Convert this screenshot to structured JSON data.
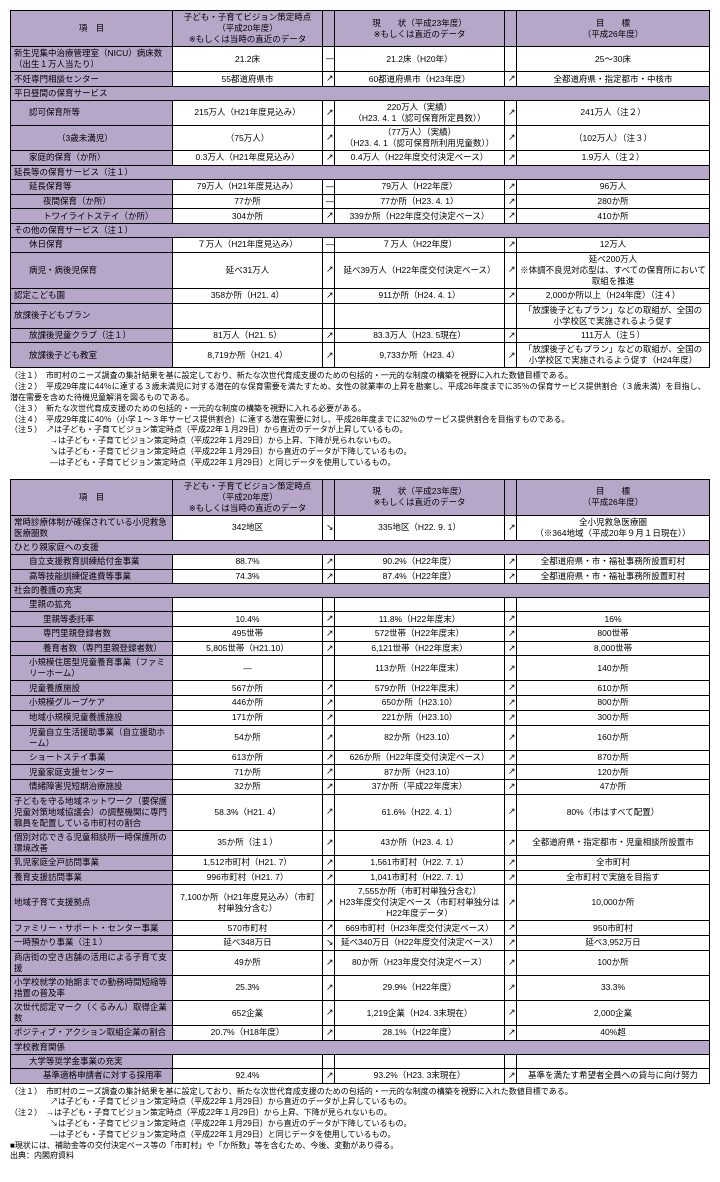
{
  "t1": {
    "header": {
      "item": "項　目",
      "vision": "子ども・子育てビジョン策定時点\n（平成20年度）\n※もしくは当時の直近のデータ",
      "current": "現　　状（平成23年度）\n※もしくは直近のデータ",
      "target": "目　　標\n（平成26年度）"
    },
    "rows": [
      {
        "label": "新生児集中治療管理室（NICU）病床数（出生１万人当たり）",
        "vision": "21.2床",
        "a1": "—",
        "current": "21.2床（H20年）",
        "a2": "",
        "target": "25〜30床"
      },
      {
        "label": "不妊専門相談センター",
        "vision": "55都道府県市",
        "a1": "↗",
        "current": "60都道府県市（H23年度）",
        "a2": "↗",
        "target": "全都道府県・指定都市・中核市"
      }
    ],
    "sec1": {
      "h": "平日昼間の保育サービス",
      "rows": [
        {
          "label": "認可保育所等",
          "ind": 1,
          "vision": "215万人（H21年度見込み）",
          "a1": "↗",
          "current": "220万人（実績）\n（H23. 4. 1（認可保育所定員数））",
          "a2": "↗",
          "target": "241万人（注２）"
        },
        {
          "label": "（3歳未満児）",
          "ind": 3,
          "vision": "（75万人）",
          "a1": "↗",
          "current": "（77万人）（実績）\n（H23. 4. 1（認可保育所利用児童数））",
          "a2": "↗",
          "target": "（102万人）（注３）"
        },
        {
          "label": "家庭的保育（か所）",
          "ind": 1,
          "vision": "0.3万人（H21年度見込み）",
          "a1": "↗",
          "current": "0.4万人（H22年度交付決定ベース）",
          "a2": "↗",
          "target": "1.9万人（注２）"
        }
      ]
    },
    "sec2": {
      "h": "延長等の保育サービス（注１）",
      "rows": [
        {
          "label": "延長保育等",
          "ind": 1,
          "vision": "79万人（H21年度見込み）",
          "a1": "—",
          "current": "79万人（H22年度）",
          "a2": "↗",
          "target": "96万人"
        },
        {
          "label": "夜間保育（か所）",
          "ind": 2,
          "vision": "77か所",
          "a1": "—",
          "current": "77か所（H23. 4. 1）",
          "a2": "↗",
          "target": "280か所"
        },
        {
          "label": "トワイライトステイ（か所）",
          "ind": 2,
          "vision": "304か所",
          "a1": "↗",
          "current": "339か所（H22年度交付決定ベース）",
          "a2": "↗",
          "target": "410か所"
        }
      ]
    },
    "sec3": {
      "h": "その他の保育サービス（注１）",
      "rows": [
        {
          "label": "休日保育",
          "ind": 1,
          "vision": "７万人（H21年度見込み）",
          "a1": "—",
          "current": "７万人（H22年度）",
          "a2": "↗",
          "target": "12万人"
        },
        {
          "label": "病児・病後児保育",
          "ind": 1,
          "vision": "延べ31万人",
          "a1": "↗",
          "current": "延べ39万人（H22年度交付決定ベース）",
          "a2": "↗",
          "target": "延べ200万人\n※体調不良児対応型は、すべての保育所において取組を推進"
        }
      ],
      "nintei": {
        "label": "認定こども園",
        "vision": "358か所（H21. 4）",
        "a1": "↗",
        "current": "911か所（H24. 4. 1）",
        "a2": "↗",
        "target": "2,000か所以上（H24年度）（注４）"
      }
    },
    "sec4": {
      "h": "放課後子どもプラン",
      "htarget": "「放課後子どもプラン」などの取組が、全国の小学校区で実施されるよう促す",
      "rows": [
        {
          "label": "放課後児童クラブ（注１）",
          "ind": 1,
          "vision": "81万人（H21. 5）",
          "a1": "↗",
          "current": "83.3万人（H23. 5現在）",
          "a2": "↗",
          "target": "111万人（注５）"
        },
        {
          "label": "放課後子ども教室",
          "ind": 1,
          "vision": "8,719か所（H21. 4）",
          "a1": "↗",
          "current": "9,733か所（H23. 4）",
          "a2": "↗",
          "target": "「放課後子どもプラン」などの取組が、全国の小学校区で実施されるよう促す（H24年度）"
        }
      ]
    }
  },
  "notes1": [
    "（注１）　市町村のニーズ調査の集計結果を基に設定しており、新たな次世代育成支援のための包括的・一元的な制度の構築を視野に入れた数値目標である。",
    "（注２）　平成29年度に44％に達する３歳未満児に対する潜在的な保育需要を満たすため、女性の就業率の上昇を勘案し、平成26年度までに35％の保育サービス提供割合（３歳未満）を目指し、潜在需要を含めた待機児童解消を図るものである。",
    "（注３）　新たな次世代育成支援のための包括的・一元的な制度の構築を視野に入れる必要がある。",
    "（注４）　平成29年度に40％（小学１〜３年サービス提供割合）に達する潜在需要に対し、平成26年度までに32％のサービス提供割合を目指すものである。",
    "（注５）　↗は子ども・子育てビジョン策定時点（平成22年１月29日）から直近のデータが上昇しているもの。",
    "　　　　　→は子ども・子育てビジョン策定時点（平成22年１月29日）から上昇、下降が見られないもの。",
    "　　　　　↘は子ども・子育てビジョン策定時点（平成22年１月29日）から直近のデータが下降しているもの。",
    "　　　　　—は子ども・子育てビジョン策定時点（平成22年１月29日）と同じデータを使用しているもの。"
  ],
  "t2": {
    "header": {
      "item": "項　目",
      "vision": "子ども・子育てビジョン策定時点\n（平成20年度）\n※もしくは当時の直近のデータ",
      "current": "現　　状（平成23年度）\n※もしくは直近のデータ",
      "target": "目　　標\n（平成26年度）"
    },
    "r1": {
      "label": "常時診療体制が確保されている小児救急医療圏数",
      "vision": "342地区",
      "a1": "↘",
      "current": "335地区（H22. 9. 1）",
      "a2": "↗",
      "target": "全小児救急医療圏\n（※364地域（平成20年９月１日現在））"
    },
    "sec1": {
      "h": "ひとり親家庭への支援",
      "rows": [
        {
          "label": "自立支援教育訓練給付金事業",
          "ind": 1,
          "vision": "88.7%",
          "a1": "↗",
          "current": "90.2%（H22年度）",
          "a2": "↗",
          "target": "全都道府県・市・福祉事務所設置町村"
        },
        {
          "label": "高等技能訓練促進費等事業",
          "ind": 1,
          "vision": "74.3%",
          "a1": "↗",
          "current": "87.4%（H22年度）",
          "a2": "↗",
          "target": "全都道府県・市・福祉事務所設置町村"
        }
      ]
    },
    "sec2": {
      "h": "社会的養護の充実",
      "rows": [
        {
          "label": "里親の拡充",
          "ind": 1,
          "head": true
        },
        {
          "label": "里親等委託率",
          "ind": 2,
          "vision": "10.4%",
          "a1": "↗",
          "current": "11.8%（H22年度末）",
          "a2": "↗",
          "target": "16%"
        },
        {
          "label": "専門里親登録者数",
          "ind": 2,
          "vision": "495世帯",
          "a1": "↗",
          "current": "572世帯（H22年度末）",
          "a2": "↗",
          "target": "800世帯"
        },
        {
          "label": "養育者数（専門里親登録者数）",
          "ind": 2,
          "vision": "5,805世帯（H21.10）",
          "a1": "↗",
          "current": "6,121世帯（H22年度末）",
          "a2": "↗",
          "target": "8,000世帯"
        },
        {
          "label": "小規模住居型児童養育事業（ファミリーホーム）",
          "ind": 1,
          "vision": "—",
          "a1": "",
          "current": "113か所（H22年度末）",
          "a2": "↗",
          "target": "140か所"
        },
        {
          "label": "児童養護施設",
          "ind": 1,
          "vision": "567か所",
          "a1": "↗",
          "current": "579か所（H22年度末）",
          "a2": "↗",
          "target": "610か所"
        },
        {
          "label": "小規模グループケア",
          "ind": 1,
          "vision": "446か所",
          "a1": "↗",
          "current": "650か所（H23.10）",
          "a2": "↗",
          "target": "800か所"
        },
        {
          "label": "地域小規模児童養護施設",
          "ind": 1,
          "vision": "171か所",
          "a1": "↗",
          "current": "221か所（H23.10）",
          "a2": "↗",
          "target": "300か所"
        },
        {
          "label": "児童自立生活援助事業（自立援助ホーム）",
          "ind": 1,
          "vision": "54か所",
          "a1": "↗",
          "current": "82か所（H23.10）",
          "a2": "↗",
          "target": "160か所"
        },
        {
          "label": "ショートステイ事業",
          "ind": 1,
          "vision": "613か所",
          "a1": "↗",
          "current": "626か所（H22年度交付決定ベース）",
          "a2": "↗",
          "target": "870か所"
        },
        {
          "label": "児童家庭支援センター",
          "ind": 1,
          "vision": "71か所",
          "a1": "↗",
          "current": "87か所（H23.10）",
          "a2": "↗",
          "target": "120か所"
        },
        {
          "label": "情緒障害児短期治療施設",
          "ind": 1,
          "vision": "32か所",
          "a1": "↗",
          "current": "37か所（平成22年度末）",
          "a2": "↗",
          "target": "47か所"
        }
      ]
    },
    "others": [
      {
        "label": "子どもを守る地域ネットワーク（要保護児童対策地域協議会）の調整機関に専門職員を配置している市町村の割合",
        "vision": "58.3%（H21. 4）",
        "a1": "↗",
        "current": "61.6%（H22. 4. 1）",
        "a2": "↗",
        "target": "80%（市はすべて配置）"
      },
      {
        "label": "個別対応できる児童相談所一時保護所の環境改善",
        "vision": "35か所（注１）",
        "a1": "↗",
        "current": "43か所（H23. 4. 1）",
        "a2": "↗",
        "target": "全都道府県・指定都市・児童相談所設置市"
      },
      {
        "label": "乳児家庭全戸訪問事業",
        "vision": "1,512市町村（H21. 7）",
        "a1": "↗",
        "current": "1,561市町村（H22. 7. 1）",
        "a2": "↗",
        "target": "全市町村"
      },
      {
        "label": "養育支援訪問事業",
        "vision": "996市町村（H21. 7）",
        "a1": "↗",
        "current": "1,041市町村（H22. 7. 1）",
        "a2": "↗",
        "target": "全市町村で実施を目指す"
      },
      {
        "label": "地域子育て支援拠点",
        "vision": "7,100か所（H21年度見込み）（市町村単独分含む）",
        "a1": "↗",
        "current": "7,555か所（市町村単独分含む）\nH23年度交付決定ベース（市町村単独分はH22年度データ）",
        "a2": "↗",
        "target": "10,000か所"
      },
      {
        "label": "ファミリー・サポート・センター事業",
        "vision": "570市町村",
        "a1": "↗",
        "current": "669市町村（H23年度交付決定ベース）",
        "a2": "↗",
        "target": "950市町村"
      },
      {
        "label": "一時預かり事業（注１）",
        "vision": "延べ348万日",
        "a1": "↘",
        "current": "延べ340万日（H22年度交付決定ベース）",
        "a2": "↗",
        "target": "延べ3,952万日"
      },
      {
        "label": "商店街の空き店舗の活用による子育て支援",
        "vision": "49か所",
        "a1": "↗",
        "current": "80か所（H23年度交付決定ベース）",
        "a2": "↗",
        "target": "100か所"
      },
      {
        "label": "小学校就学の始期までの勤務時間短縮等措置の普及率",
        "vision": "25.3%",
        "a1": "↗",
        "current": "29.9%（H22年度）",
        "a2": "↗",
        "target": "33.3%"
      },
      {
        "label": "次世代認定マーク（くるみん）取得企業数",
        "vision": "652企業",
        "a1": "↗",
        "current": "1,219企業（H24. 3末現在）",
        "a2": "↗",
        "target": "2,000企業"
      },
      {
        "label": "ポジティブ・アクション取組企業の割合",
        "vision": "20.7%（H18年度）",
        "a1": "↗",
        "current": "28.1%（H22年度）",
        "a2": "↗",
        "target": "40%超"
      }
    ],
    "sec3": {
      "h": "学校教育関係",
      "rows": [
        {
          "label": "大学等奨学金事業の充実",
          "ind": 1,
          "head": true
        },
        {
          "label": "基準適格申請者に対する採用率",
          "ind": 2,
          "vision": "92.4%",
          "a1": "↗",
          "current": "93.2%（H23. 3末現在）",
          "a2": "↗",
          "target": "基準を満たす希望者全員への貸与に向け努力"
        }
      ]
    }
  },
  "notes2": [
    "（注１）　市町村のニーズ調査の集計結果を基に設定しており、新たな次世代育成支援のための包括的・一元的な制度の構築を視野に入れた数値目標である。",
    "　　　　　↗は子ども・子育てビジョン策定時点（平成22年１月29日）から直近のデータが上昇しているもの。",
    "（注２）　→は子ども・子育てビジョン策定時点（平成22年１月29日）から上昇、下降が見られないもの。",
    "　　　　　↘は子ども・子育てビジョン策定時点（平成22年１月29日）から直近のデータが下降しているもの。",
    "　　　　　—は子ども・子育てビジョン策定時点（平成22年１月29日）と同じデータを使用しているもの。",
    "■現状には、補助金等の交付決定ベース等の「市町村」や「か所数」等を含むため、今後、変動があり得る。",
    "出典：内閣府資料"
  ]
}
